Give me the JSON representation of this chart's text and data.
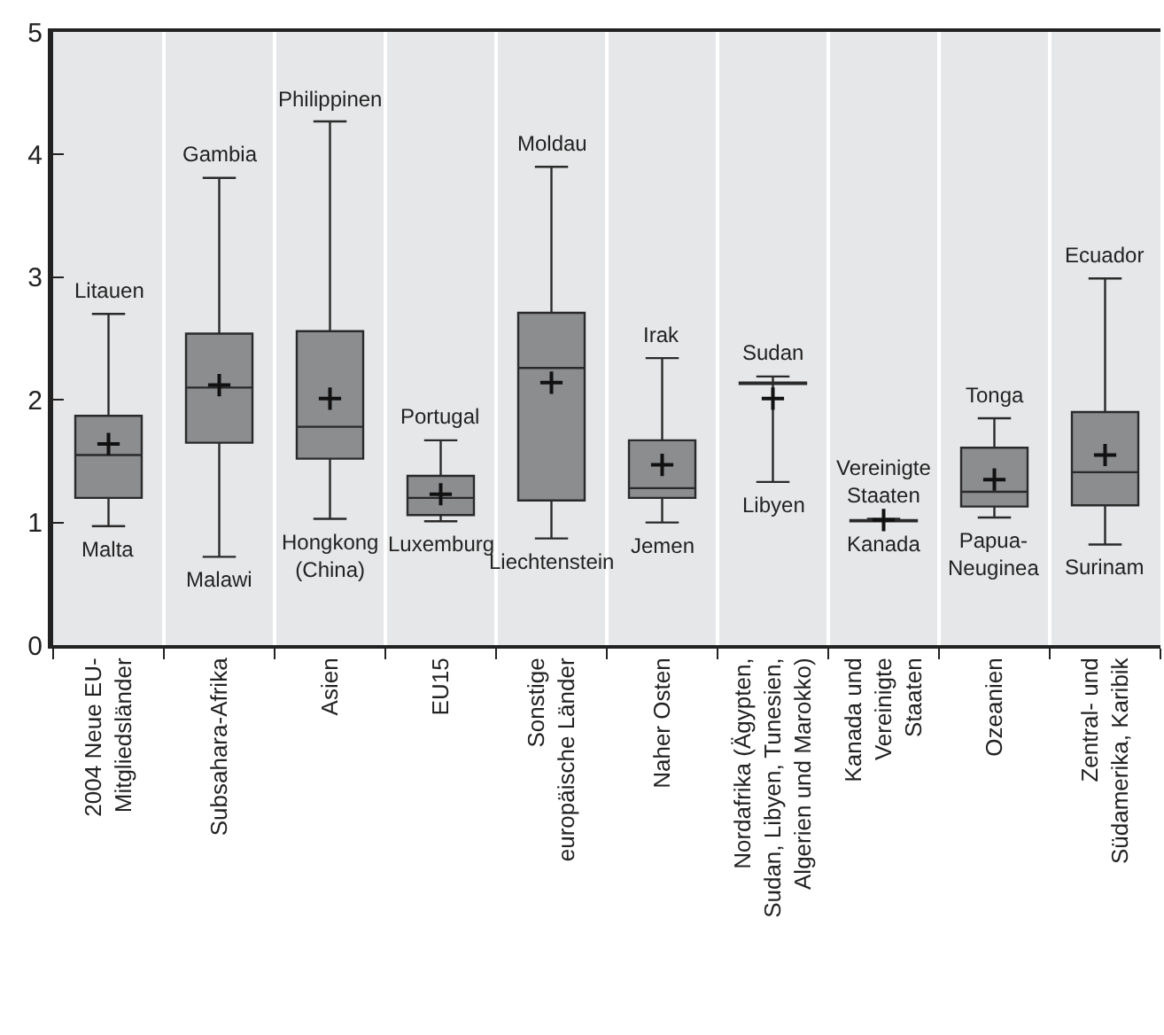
{
  "chart_data": {
    "type": "box",
    "categories": [
      "2004 Neue EU-\nMitgliedsländer",
      "Subsahara-Afrika",
      "Asien",
      "EU15",
      "Sonstige\neuropäische Länder",
      "Naher Osten",
      "Nordafrika (Ägypten,\nSudan, Libyen, Tunesien,\nAlgerien und Marokko)",
      "Kanada und\nVereinigte\nStaaten",
      "Ozeanien",
      "Zentral- und\nSüdamerika, Karibik"
    ],
    "boxes": [
      {
        "low": 0.97,
        "q1": 1.2,
        "median": 1.55,
        "q3": 1.87,
        "high": 2.7,
        "mean": 1.64
      },
      {
        "low": 0.72,
        "q1": 1.65,
        "median": 2.1,
        "q3": 2.54,
        "high": 3.81,
        "mean": 2.12
      },
      {
        "low": 1.03,
        "q1": 1.52,
        "median": 1.78,
        "q3": 2.56,
        "high": 4.27,
        "mean": 2.01
      },
      {
        "low": 1.01,
        "q1": 1.06,
        "median": 1.2,
        "q3": 1.38,
        "high": 1.67,
        "mean": 1.23
      },
      {
        "low": 0.87,
        "q1": 1.18,
        "median": 2.26,
        "q3": 2.71,
        "high": 3.9,
        "mean": 2.14
      },
      {
        "low": 1.0,
        "q1": 1.2,
        "median": 1.28,
        "q3": 1.67,
        "high": 2.34,
        "mean": 1.47
      },
      {
        "low": 1.33,
        "q1": 2.13,
        "median": 2.13,
        "q3": 2.14,
        "high": 2.19,
        "mean": 2.01
      },
      {
        "low": 1.01,
        "q1": 1.01,
        "median": 1.02,
        "q3": 1.02,
        "high": 1.03,
        "mean": 1.02
      },
      {
        "low": 1.04,
        "q1": 1.13,
        "median": 1.25,
        "q3": 1.61,
        "high": 1.85,
        "mean": 1.35
      },
      {
        "low": 0.82,
        "q1": 1.14,
        "median": 1.41,
        "q3": 1.9,
        "high": 2.99,
        "mean": 1.55
      }
    ],
    "color": "#8c8d8f",
    "ylim": [
      0,
      5
    ],
    "yticks": [
      0,
      1,
      2,
      3,
      4,
      5
    ],
    "grid": "x",
    "annotations": [
      {
        "text": "Litauen",
        "x": "2004 Neue EU-\nMitgliedsländer",
        "y": 2.7
      },
      {
        "text": "Malta",
        "x": "2004 Neue EU-\nMitgliedsländer",
        "y": 0.97
      },
      {
        "text": "Gambia",
        "x": "Subsahara-Afrika",
        "y": 3.81
      },
      {
        "text": "Malawi",
        "x": "Subsahara-Afrika",
        "y": 0.72
      },
      {
        "text": "Philippinen",
        "x": "Asien",
        "y": 4.27
      },
      {
        "text": "Hongkong\n(China)",
        "x": "Asien",
        "y": 1.03
      },
      {
        "text": "Portugal",
        "x": "EU15",
        "y": 1.67
      },
      {
        "text": "Luxemburg",
        "x": "EU15",
        "y": 1.01
      },
      {
        "text": "Moldau",
        "x": "Sonstige\neuropäische Länder",
        "y": 3.9
      },
      {
        "text": "Liechtenstein",
        "x": "Sonstige\neuropäische Länder",
        "y": 0.87
      },
      {
        "text": "Irak",
        "x": "Naher Osten",
        "y": 2.34
      },
      {
        "text": "Jemen",
        "x": "Naher Osten",
        "y": 1.0
      },
      {
        "text": "Sudan",
        "x": "Nordafrika (Ägypten,\nSudan, Libyen, Tunesien,\nAlgerien und Marokko)",
        "y": 2.19
      },
      {
        "text": "Libyen",
        "x": "Nordafrika (Ägypten,\nSudan, Libyen, Tunesien,\nAlgerien und Marokko)",
        "y": 1.33
      },
      {
        "text": "Vereinigte\nStaaten",
        "x": "Kanada und\nVereinigte\nStaaten",
        "y": 1.03
      },
      {
        "text": "Kanada",
        "x": "Kanada und\nVereinigte\nStaaten",
        "y": 1.01
      },
      {
        "text": "Tonga",
        "x": "Ozeanien",
        "y": 1.85
      },
      {
        "text": "Papua-\nNeuginea",
        "x": "Ozeanien",
        "y": 1.04
      },
      {
        "text": "Ecuador",
        "x": "Zentral- und\nSüdamerika, Karibik",
        "y": 2.99
      },
      {
        "text": "Surinam",
        "x": "Zentral- und\nSüdamerika, Karibik",
        "y": 0.82
      }
    ]
  }
}
